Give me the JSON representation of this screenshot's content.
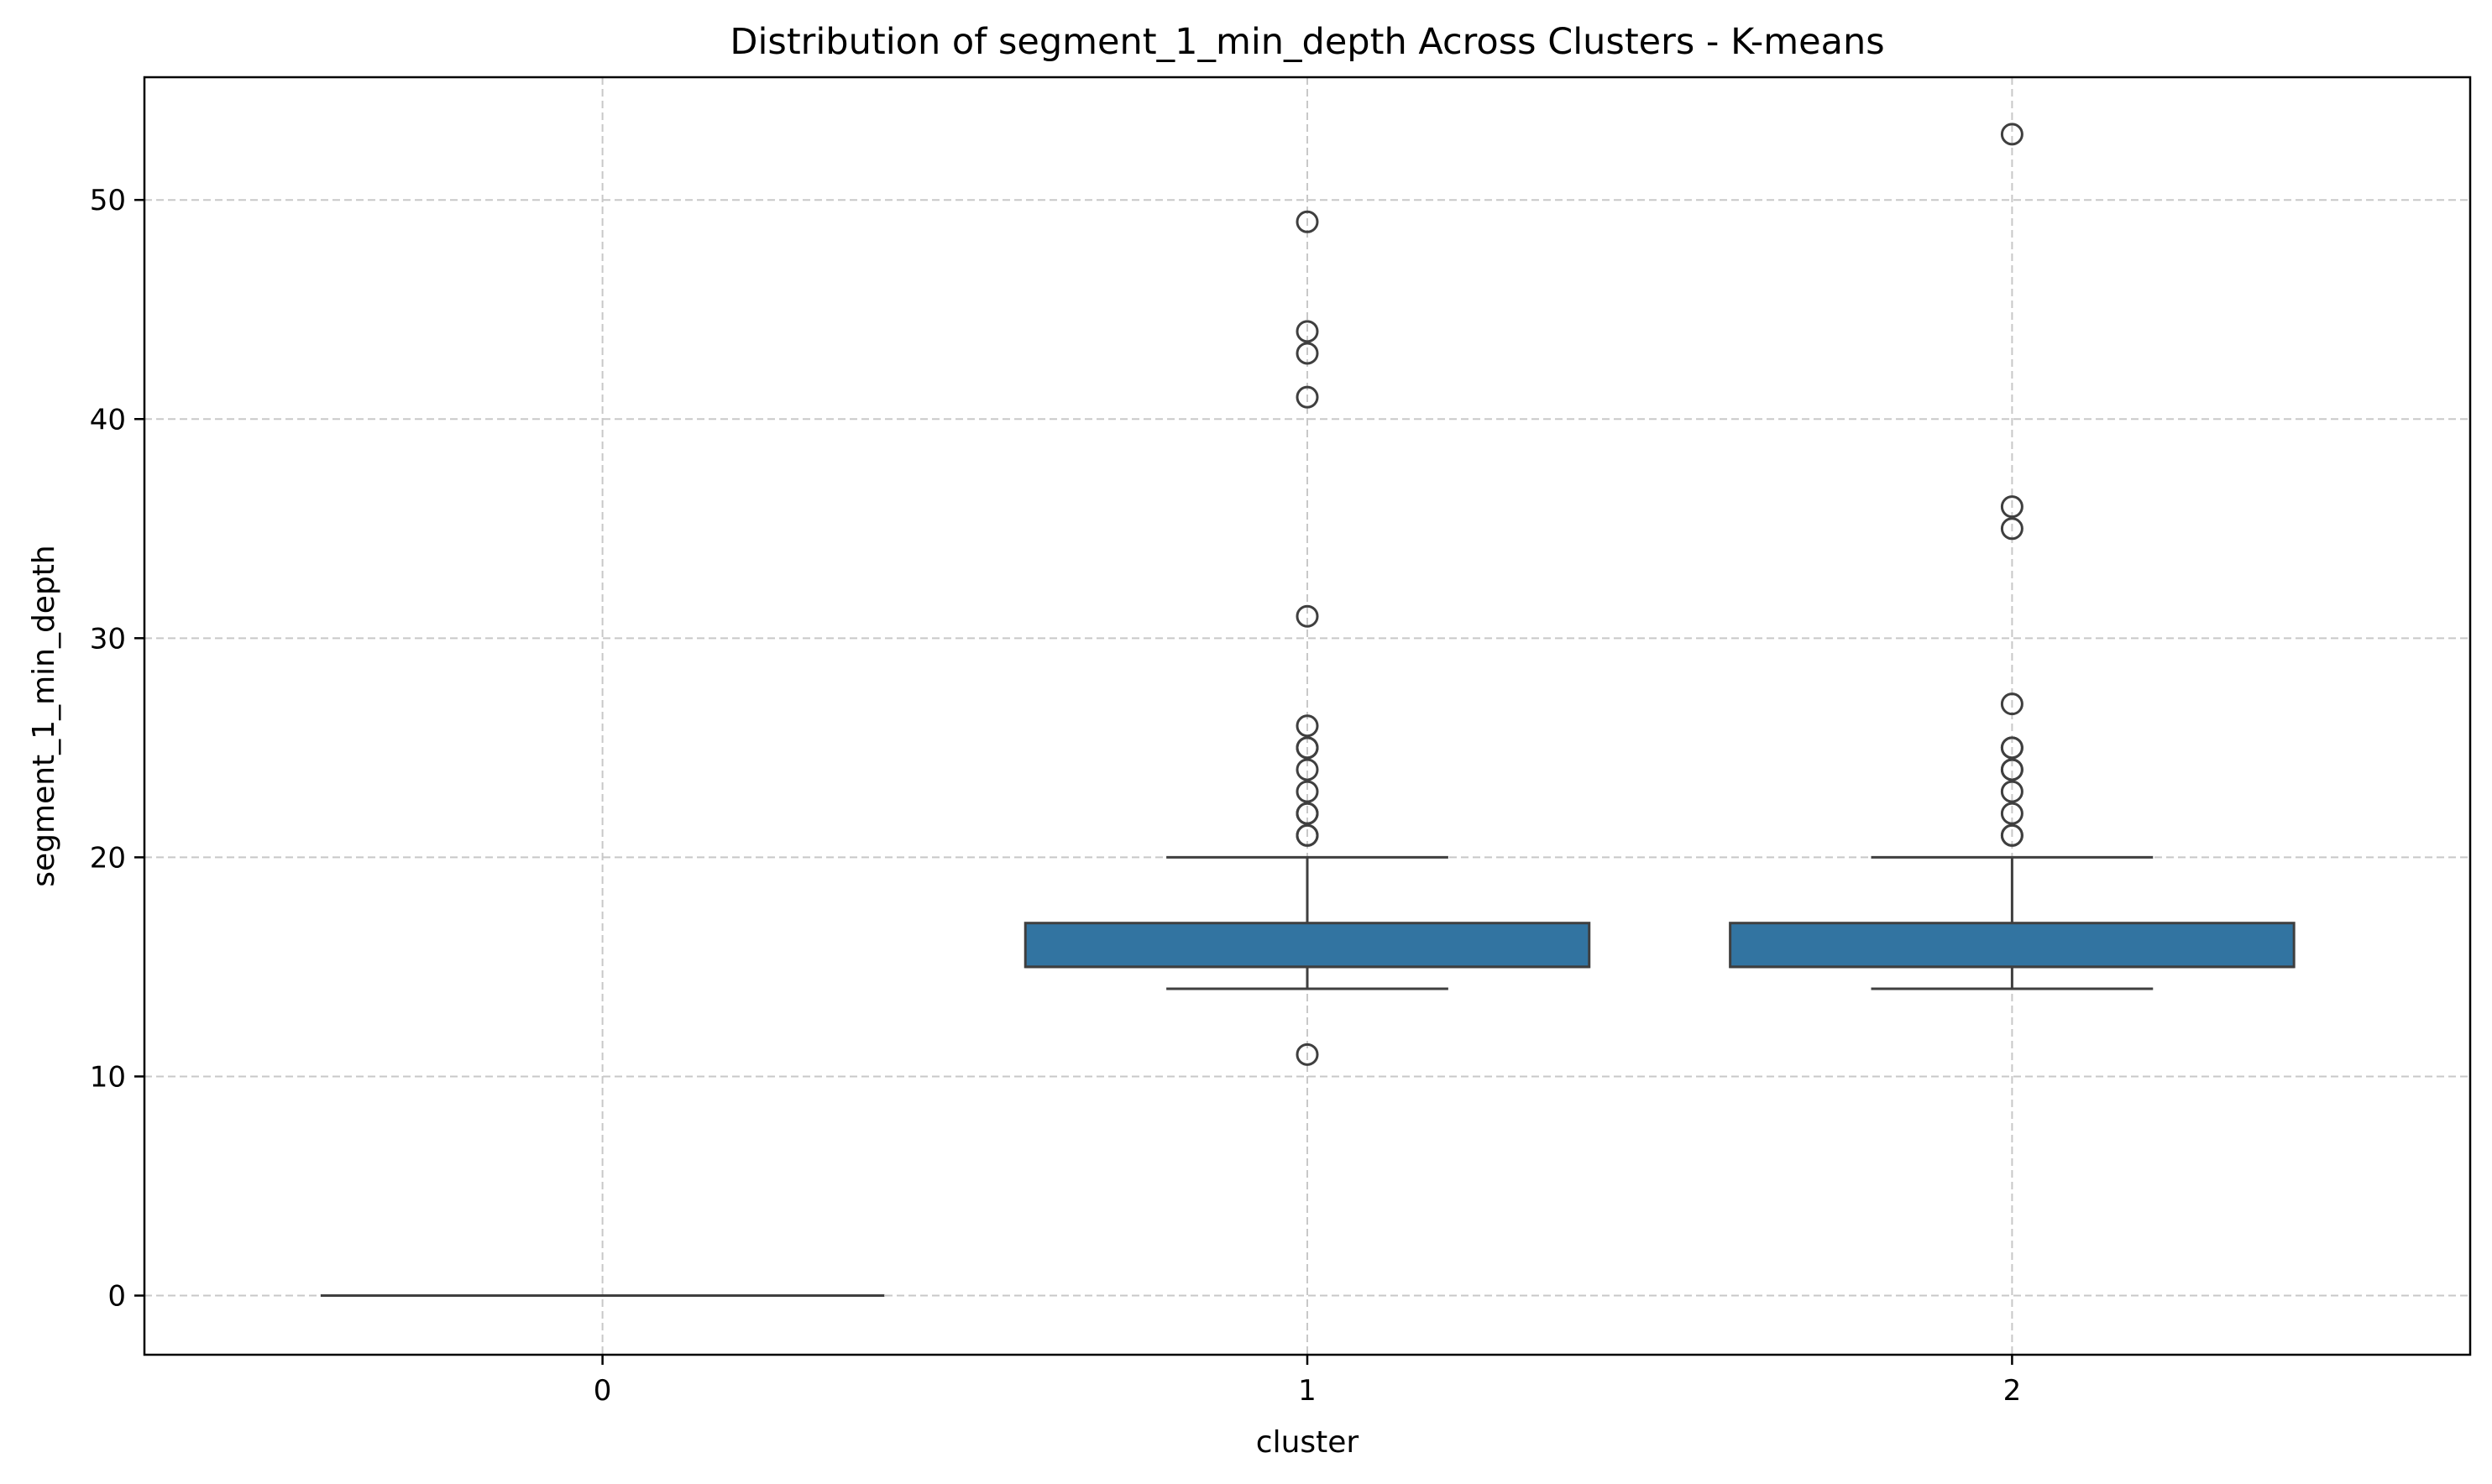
{
  "chart_data": {
    "type": "box",
    "title": "Distribution of segment_1_min_depth Across Clusters - K-means",
    "xlabel": "cluster",
    "ylabel": "segment_1_min_depth",
    "categories": [
      "0",
      "1",
      "2"
    ],
    "ylim": [
      -2.7,
      55.6
    ],
    "yticks": [
      0,
      10,
      20,
      30,
      40,
      50
    ],
    "grid": true,
    "box_color": "#3274a1",
    "edge_color": "#3f3f3f",
    "grid_color": "#c8c8c8",
    "boxes": [
      {
        "category": "0",
        "min": 0,
        "q1": 0,
        "median": 0,
        "q3": 0,
        "max": 0,
        "outliers": []
      },
      {
        "category": "1",
        "min": 14,
        "q1": 15,
        "median": 15,
        "q3": 17,
        "max": 20,
        "outliers": [
          11,
          21,
          21,
          22,
          22,
          23,
          24,
          25,
          25,
          26,
          31,
          41,
          43,
          44,
          49
        ]
      },
      {
        "category": "2",
        "min": 14,
        "q1": 15,
        "median": 15,
        "q3": 17,
        "max": 20,
        "outliers": [
          21,
          21,
          22,
          23,
          24,
          24,
          25,
          25,
          27,
          35,
          36,
          53
        ]
      }
    ]
  }
}
